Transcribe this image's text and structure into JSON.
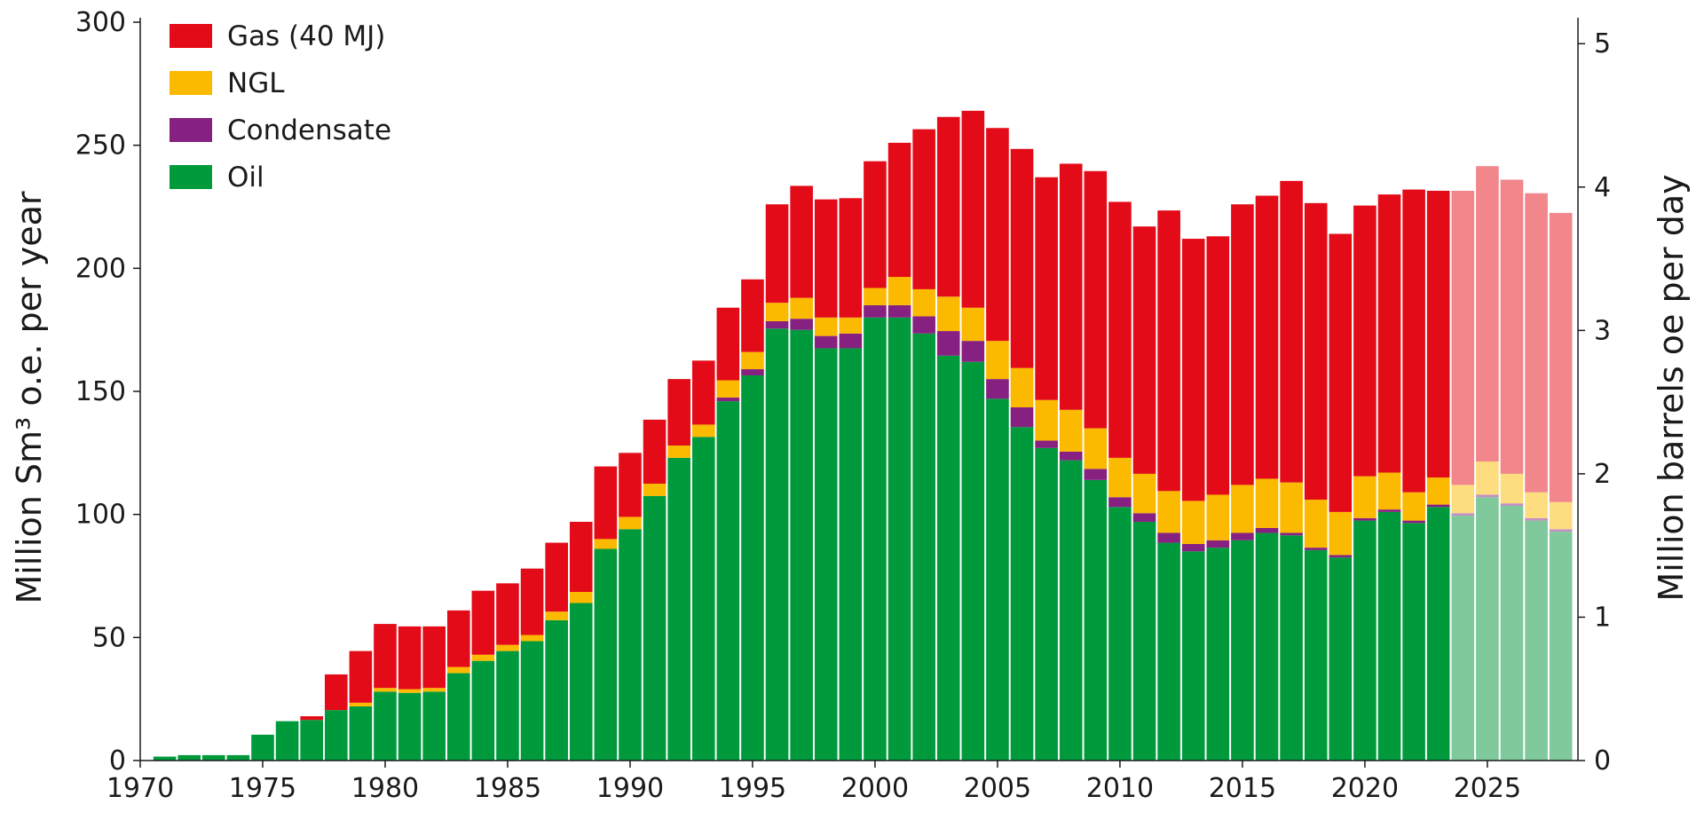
{
  "chart_data": {
    "type": "bar",
    "stacked": true,
    "ylabel": "Million  Sm³ o.e. per year",
    "y2label": "Million barrels oe per day",
    "ylim": [
      0,
      300
    ],
    "y2lim": [
      0,
      5.15
    ],
    "yticks": [
      "0",
      "50",
      "100",
      "150",
      "200",
      "250",
      "300"
    ],
    "y2ticks": [
      "0",
      "1",
      "2",
      "3",
      "4",
      "5"
    ],
    "xticks": [
      "1970",
      "1975",
      "1980",
      "1985",
      "1990",
      "1995",
      "2000",
      "2005",
      "2010",
      "2015",
      "2020",
      "2025"
    ],
    "legend_position": "top-left",
    "forecast_from": 2024,
    "categories": [
      1971,
      1972,
      1973,
      1974,
      1975,
      1976,
      1977,
      1978,
      1979,
      1980,
      1981,
      1982,
      1983,
      1984,
      1985,
      1986,
      1987,
      1988,
      1989,
      1990,
      1991,
      1992,
      1993,
      1994,
      1995,
      1996,
      1997,
      1998,
      1999,
      2000,
      2001,
      2002,
      2003,
      2004,
      2005,
      2006,
      2007,
      2008,
      2009,
      2010,
      2011,
      2012,
      2013,
      2014,
      2015,
      2016,
      2017,
      2018,
      2019,
      2020,
      2021,
      2022,
      2023,
      2024,
      2025,
      2026,
      2027,
      2028
    ],
    "series": [
      {
        "name": "Oil",
        "color": "#009a3d",
        "forecast_color": "#80c99c",
        "values": [
          1.6,
          2.2,
          2.2,
          2.2,
          10.5,
          16,
          16.5,
          20.5,
          22,
          28,
          27.5,
          28,
          35.5,
          40.5,
          44.5,
          48.5,
          57,
          64,
          86,
          94,
          107.5,
          123,
          131.5,
          146,
          156.5,
          175.5,
          175,
          167.5,
          167.5,
          180,
          180,
          173.5,
          164.5,
          162,
          147,
          135.5,
          127,
          122,
          114,
          103,
          97,
          88.5,
          85,
          86.5,
          89.5,
          92.5,
          91.5,
          85.5,
          82.5,
          97.5,
          101,
          96.5,
          103,
          99.5,
          107,
          103.5,
          97.5,
          93
        ]
      },
      {
        "name": "Condensate",
        "color": "#862081",
        "forecast_color": "#c290c0",
        "values": [
          0,
          0,
          0,
          0,
          0,
          0,
          0,
          0,
          0,
          0,
          0,
          0,
          0,
          0,
          0,
          0,
          0,
          0,
          0,
          0,
          0,
          0,
          0,
          1.5,
          2.5,
          3,
          4.5,
          5,
          6,
          5,
          5,
          7,
          10,
          8.5,
          8,
          8,
          3,
          3.5,
          4.5,
          4,
          3.5,
          4,
          3,
          3,
          3,
          2,
          1,
          1,
          1,
          1,
          1,
          1,
          1,
          1,
          1,
          1,
          1,
          1
        ]
      },
      {
        "name": "NGL",
        "color": "#fbb900",
        "forecast_color": "#fddd80",
        "values": [
          0,
          0,
          0,
          0,
          0,
          0,
          0,
          0,
          1.5,
          1.5,
          1.5,
          1.5,
          2.5,
          2.5,
          2.5,
          2.5,
          3.5,
          4.5,
          4,
          5,
          5,
          5,
          5,
          7,
          7,
          7.5,
          8.5,
          7.5,
          6.5,
          7,
          11.5,
          11,
          14,
          13.5,
          15.5,
          16,
          16.5,
          17,
          16.5,
          16,
          16,
          17,
          17.5,
          18.5,
          19.5,
          20,
          20.5,
          19.5,
          17.5,
          17,
          15,
          11.5,
          11,
          11.5,
          13.5,
          12,
          10.5,
          11
        ]
      },
      {
        "name": "Gas (40 MJ)",
        "color": "#e30b17",
        "forecast_color": "#f1868b",
        "values": [
          0,
          0,
          0,
          0,
          0,
          0,
          1.5,
          14.5,
          21,
          26,
          25.5,
          25,
          23,
          26,
          25,
          27,
          28,
          28.5,
          29.5,
          26,
          26,
          27,
          26,
          29.5,
          29.5,
          40,
          45.5,
          48,
          48.5,
          51.5,
          54.5,
          65,
          73,
          80,
          86.5,
          89,
          90.5,
          100,
          104.5,
          104,
          100.5,
          114,
          106.5,
          105,
          114,
          115,
          122.5,
          120.5,
          113,
          110,
          113,
          123,
          116.5,
          119.5,
          120,
          119.5,
          121.5,
          117.5
        ]
      }
    ]
  }
}
